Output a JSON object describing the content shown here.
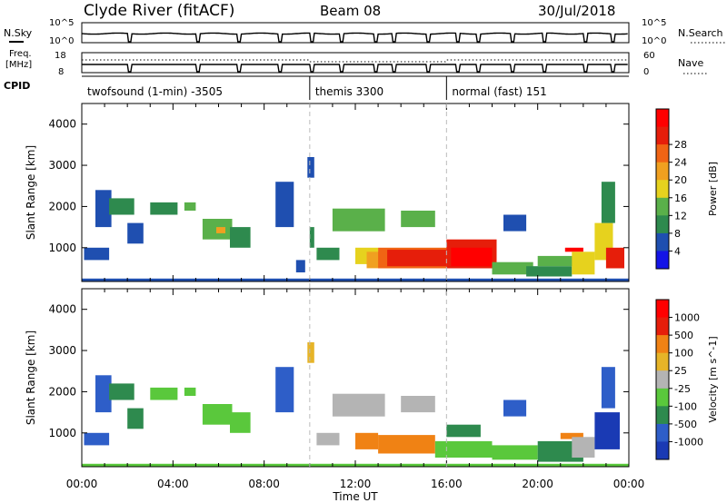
{
  "header": {
    "station": "Clyde River (fitACF)",
    "beam": "Beam 08",
    "date": "30/Jul/2018"
  },
  "panels": {
    "nsky": {
      "left_label": "N.Sky",
      "left_top_tick": "10^5",
      "left_bottom_tick": "10^0",
      "right_top_tick": "10^5",
      "right_bottom_tick": "10^0",
      "right_label": "N.Search"
    },
    "freq": {
      "left_label_1": "Freq.",
      "left_label_2": "[MHz]",
      "left_top_tick": "18",
      "left_bottom_tick": "8",
      "right_top_tick": "60",
      "right_bottom_tick": "0",
      "right_label": "Nave"
    },
    "cpid": {
      "label": "CPID",
      "modes": [
        {
          "label": "twofsound (1-min)  -3505",
          "start_hour": 0.0
        },
        {
          "label": "themis 3300",
          "start_hour": 10.0
        },
        {
          "label": "normal (fast) 151",
          "start_hour": 16.0
        }
      ]
    }
  },
  "chart_data": [
    {
      "type": "heatmap",
      "name": "power",
      "ylabel": "Slant Range [km]",
      "xlim": [
        0,
        24
      ],
      "ylim": [
        180,
        4500
      ],
      "yticks": [
        1000,
        2000,
        3000,
        4000
      ],
      "colorbar": {
        "label": "Power [dB]",
        "ticks": [
          "4",
          "8",
          "12",
          "16",
          "20",
          "24",
          "28"
        ],
        "colors": [
          "#1414e6",
          "#1f4fb0",
          "#2e8a4e",
          "#5ab04a",
          "#e6d21e",
          "#f0a020",
          "#f06414",
          "#e61e0a",
          "#ff0000"
        ]
      },
      "cells": [
        {
          "x": [
            0.0,
            24.0
          ],
          "y": [
            180,
            250
          ],
          "level": 1
        },
        {
          "x": [
            0.1,
            1.2
          ],
          "y": [
            700,
            1000
          ],
          "level": 1
        },
        {
          "x": [
            0.6,
            1.3
          ],
          "y": [
            1500,
            2400
          ],
          "level": 1
        },
        {
          "x": [
            1.2,
            2.3
          ],
          "y": [
            1800,
            2200
          ],
          "level": 2
        },
        {
          "x": [
            2.0,
            2.7
          ],
          "y": [
            1100,
            1600
          ],
          "level": 1
        },
        {
          "x": [
            3.0,
            4.2
          ],
          "y": [
            1800,
            2100
          ],
          "level": 2
        },
        {
          "x": [
            4.5,
            5.0
          ],
          "y": [
            1900,
            2100
          ],
          "level": 3
        },
        {
          "x": [
            5.3,
            6.6
          ],
          "y": [
            1200,
            1700
          ],
          "level": 3
        },
        {
          "x": [
            5.9,
            6.3
          ],
          "y": [
            1350,
            1500
          ],
          "level": 5
        },
        {
          "x": [
            6.5,
            7.4
          ],
          "y": [
            1000,
            1500
          ],
          "level": 2
        },
        {
          "x": [
            8.5,
            9.3
          ],
          "y": [
            1500,
            2600
          ],
          "level": 1
        },
        {
          "x": [
            9.4,
            9.8
          ],
          "y": [
            400,
            700
          ],
          "level": 1
        },
        {
          "x": [
            9.9,
            10.2
          ],
          "y": [
            2700,
            3200
          ],
          "level": 1
        },
        {
          "x": [
            10.0,
            10.2
          ],
          "y": [
            1000,
            1500
          ],
          "level": 2
        },
        {
          "x": [
            10.3,
            11.3
          ],
          "y": [
            700,
            1000
          ],
          "level": 2
        },
        {
          "x": [
            11.0,
            13.3
          ],
          "y": [
            1400,
            1950
          ],
          "level": 3
        },
        {
          "x": [
            12.0,
            13.0
          ],
          "y": [
            600,
            1000
          ],
          "level": 4
        },
        {
          "x": [
            12.5,
            13.2
          ],
          "y": [
            500,
            900
          ],
          "level": 5
        },
        {
          "x": [
            13.0,
            16.0
          ],
          "y": [
            500,
            1000
          ],
          "level": 6
        },
        {
          "x": [
            13.4,
            16.0
          ],
          "y": [
            550,
            950
          ],
          "level": 7
        },
        {
          "x": [
            14.0,
            15.5
          ],
          "y": [
            1500,
            1900
          ],
          "level": 3
        },
        {
          "x": [
            16.0,
            18.2
          ],
          "y": [
            500,
            1200
          ],
          "level": 7
        },
        {
          "x": [
            16.2,
            18.0
          ],
          "y": [
            550,
            1000
          ],
          "level": 8
        },
        {
          "x": [
            18.0,
            19.8
          ],
          "y": [
            350,
            650
          ],
          "level": 3
        },
        {
          "x": [
            18.5,
            19.5
          ],
          "y": [
            1400,
            1800
          ],
          "level": 1
        },
        {
          "x": [
            19.5,
            21.5
          ],
          "y": [
            300,
            550
          ],
          "level": 2
        },
        {
          "x": [
            20.0,
            21.8
          ],
          "y": [
            550,
            800
          ],
          "level": 3
        },
        {
          "x": [
            21.2,
            22.0
          ],
          "y": [
            900,
            1000
          ],
          "level": 8
        },
        {
          "x": [
            21.5,
            22.5
          ],
          "y": [
            350,
            900
          ],
          "level": 4
        },
        {
          "x": [
            22.5,
            23.3
          ],
          "y": [
            700,
            1600
          ],
          "level": 4
        },
        {
          "x": [
            23.0,
            23.8
          ],
          "y": [
            500,
            1000
          ],
          "level": 7
        },
        {
          "x": [
            22.8,
            23.4
          ],
          "y": [
            1600,
            2600
          ],
          "level": 2
        }
      ]
    },
    {
      "type": "heatmap",
      "name": "velocity",
      "xlabel": "Time UT",
      "ylabel": "Slant Range [km]",
      "xlim": [
        0,
        24
      ],
      "ylim": [
        180,
        4500
      ],
      "yticks": [
        1000,
        2000,
        3000,
        4000
      ],
      "xticks": [
        "00:00",
        "04:00",
        "08:00",
        "12:00",
        "16:00",
        "20:00",
        "00:00"
      ],
      "colorbar": {
        "label": "Velocity [m s^-1]",
        "ticks": [
          "1000",
          "500",
          "100",
          "25",
          "-25",
          "-100",
          "-500",
          "-1000"
        ],
        "colors": [
          "#1a3ab4",
          "#2e5ec8",
          "#2e8a4e",
          "#5ac83c",
          "#b4b4b4",
          "#e6b428",
          "#f08214",
          "#e61e0a",
          "#ff0000"
        ]
      },
      "cells": [
        {
          "x": [
            0.0,
            24.0
          ],
          "y": [
            180,
            250
          ],
          "level": 3
        },
        {
          "x": [
            0.1,
            1.2
          ],
          "y": [
            700,
            1000
          ],
          "level": 1
        },
        {
          "x": [
            0.6,
            1.3
          ],
          "y": [
            1500,
            2400
          ],
          "level": 1
        },
        {
          "x": [
            1.2,
            2.3
          ],
          "y": [
            1800,
            2200
          ],
          "level": 2
        },
        {
          "x": [
            2.0,
            2.7
          ],
          "y": [
            1100,
            1600
          ],
          "level": 2
        },
        {
          "x": [
            3.0,
            4.2
          ],
          "y": [
            1800,
            2100
          ],
          "level": 3
        },
        {
          "x": [
            4.5,
            5.0
          ],
          "y": [
            1900,
            2100
          ],
          "level": 3
        },
        {
          "x": [
            5.3,
            6.6
          ],
          "y": [
            1200,
            1700
          ],
          "level": 3
        },
        {
          "x": [
            6.5,
            7.4
          ],
          "y": [
            1000,
            1500
          ],
          "level": 3
        },
        {
          "x": [
            8.5,
            9.3
          ],
          "y": [
            1500,
            2600
          ],
          "level": 1
        },
        {
          "x": [
            9.9,
            10.2
          ],
          "y": [
            2700,
            3200
          ],
          "level": 5
        },
        {
          "x": [
            10.3,
            11.3
          ],
          "y": [
            700,
            1000
          ],
          "level": 4
        },
        {
          "x": [
            11.0,
            13.3
          ],
          "y": [
            1400,
            1950
          ],
          "level": 4
        },
        {
          "x": [
            12.0,
            13.0
          ],
          "y": [
            600,
            1000
          ],
          "level": 6
        },
        {
          "x": [
            13.0,
            15.5
          ],
          "y": [
            500,
            950
          ],
          "level": 6
        },
        {
          "x": [
            14.0,
            15.5
          ],
          "y": [
            1500,
            1900
          ],
          "level": 4
        },
        {
          "x": [
            15.5,
            18.0
          ],
          "y": [
            400,
            800
          ],
          "level": 3
        },
        {
          "x": [
            16.0,
            17.5
          ],
          "y": [
            900,
            1200
          ],
          "level": 2
        },
        {
          "x": [
            18.0,
            20.0
          ],
          "y": [
            350,
            700
          ],
          "level": 3
        },
        {
          "x": [
            18.5,
            19.5
          ],
          "y": [
            1400,
            1800
          ],
          "level": 1
        },
        {
          "x": [
            20.0,
            22.0
          ],
          "y": [
            300,
            800
          ],
          "level": 2
        },
        {
          "x": [
            21.0,
            22.0
          ],
          "y": [
            850,
            1000
          ],
          "level": 6
        },
        {
          "x": [
            21.5,
            22.5
          ],
          "y": [
            400,
            900
          ],
          "level": 4
        },
        {
          "x": [
            22.5,
            23.6
          ],
          "y": [
            600,
            1500
          ],
          "level": 0
        },
        {
          "x": [
            22.8,
            23.4
          ],
          "y": [
            1600,
            2600
          ],
          "level": 1
        }
      ]
    }
  ]
}
